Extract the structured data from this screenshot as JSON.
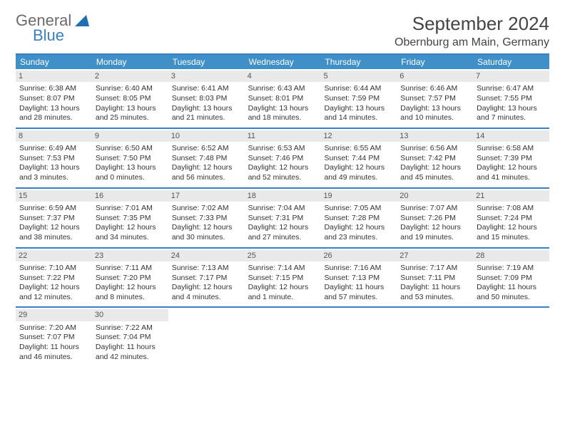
{
  "brand": {
    "general": "General",
    "blue": "Blue",
    "logo_color": "#1f6fb2"
  },
  "header": {
    "month_title": "September 2024",
    "location": "Obernburg am Main, Germany"
  },
  "colors": {
    "header_bar": "#3f8fc9",
    "rule": "#3a7fbf",
    "daynum_bg": "#e9e9e9",
    "text": "#333333"
  },
  "weekdays": [
    "Sunday",
    "Monday",
    "Tuesday",
    "Wednesday",
    "Thursday",
    "Friday",
    "Saturday"
  ],
  "weeks": [
    [
      {
        "n": "1",
        "sunrise": "Sunrise: 6:38 AM",
        "sunset": "Sunset: 8:07 PM",
        "day1": "Daylight: 13 hours",
        "day2": "and 28 minutes."
      },
      {
        "n": "2",
        "sunrise": "Sunrise: 6:40 AM",
        "sunset": "Sunset: 8:05 PM",
        "day1": "Daylight: 13 hours",
        "day2": "and 25 minutes."
      },
      {
        "n": "3",
        "sunrise": "Sunrise: 6:41 AM",
        "sunset": "Sunset: 8:03 PM",
        "day1": "Daylight: 13 hours",
        "day2": "and 21 minutes."
      },
      {
        "n": "4",
        "sunrise": "Sunrise: 6:43 AM",
        "sunset": "Sunset: 8:01 PM",
        "day1": "Daylight: 13 hours",
        "day2": "and 18 minutes."
      },
      {
        "n": "5",
        "sunrise": "Sunrise: 6:44 AM",
        "sunset": "Sunset: 7:59 PM",
        "day1": "Daylight: 13 hours",
        "day2": "and 14 minutes."
      },
      {
        "n": "6",
        "sunrise": "Sunrise: 6:46 AM",
        "sunset": "Sunset: 7:57 PM",
        "day1": "Daylight: 13 hours",
        "day2": "and 10 minutes."
      },
      {
        "n": "7",
        "sunrise": "Sunrise: 6:47 AM",
        "sunset": "Sunset: 7:55 PM",
        "day1": "Daylight: 13 hours",
        "day2": "and 7 minutes."
      }
    ],
    [
      {
        "n": "8",
        "sunrise": "Sunrise: 6:49 AM",
        "sunset": "Sunset: 7:53 PM",
        "day1": "Daylight: 13 hours",
        "day2": "and 3 minutes."
      },
      {
        "n": "9",
        "sunrise": "Sunrise: 6:50 AM",
        "sunset": "Sunset: 7:50 PM",
        "day1": "Daylight: 13 hours",
        "day2": "and 0 minutes."
      },
      {
        "n": "10",
        "sunrise": "Sunrise: 6:52 AM",
        "sunset": "Sunset: 7:48 PM",
        "day1": "Daylight: 12 hours",
        "day2": "and 56 minutes."
      },
      {
        "n": "11",
        "sunrise": "Sunrise: 6:53 AM",
        "sunset": "Sunset: 7:46 PM",
        "day1": "Daylight: 12 hours",
        "day2": "and 52 minutes."
      },
      {
        "n": "12",
        "sunrise": "Sunrise: 6:55 AM",
        "sunset": "Sunset: 7:44 PM",
        "day1": "Daylight: 12 hours",
        "day2": "and 49 minutes."
      },
      {
        "n": "13",
        "sunrise": "Sunrise: 6:56 AM",
        "sunset": "Sunset: 7:42 PM",
        "day1": "Daylight: 12 hours",
        "day2": "and 45 minutes."
      },
      {
        "n": "14",
        "sunrise": "Sunrise: 6:58 AM",
        "sunset": "Sunset: 7:39 PM",
        "day1": "Daylight: 12 hours",
        "day2": "and 41 minutes."
      }
    ],
    [
      {
        "n": "15",
        "sunrise": "Sunrise: 6:59 AM",
        "sunset": "Sunset: 7:37 PM",
        "day1": "Daylight: 12 hours",
        "day2": "and 38 minutes."
      },
      {
        "n": "16",
        "sunrise": "Sunrise: 7:01 AM",
        "sunset": "Sunset: 7:35 PM",
        "day1": "Daylight: 12 hours",
        "day2": "and 34 minutes."
      },
      {
        "n": "17",
        "sunrise": "Sunrise: 7:02 AM",
        "sunset": "Sunset: 7:33 PM",
        "day1": "Daylight: 12 hours",
        "day2": "and 30 minutes."
      },
      {
        "n": "18",
        "sunrise": "Sunrise: 7:04 AM",
        "sunset": "Sunset: 7:31 PM",
        "day1": "Daylight: 12 hours",
        "day2": "and 27 minutes."
      },
      {
        "n": "19",
        "sunrise": "Sunrise: 7:05 AM",
        "sunset": "Sunset: 7:28 PM",
        "day1": "Daylight: 12 hours",
        "day2": "and 23 minutes."
      },
      {
        "n": "20",
        "sunrise": "Sunrise: 7:07 AM",
        "sunset": "Sunset: 7:26 PM",
        "day1": "Daylight: 12 hours",
        "day2": "and 19 minutes."
      },
      {
        "n": "21",
        "sunrise": "Sunrise: 7:08 AM",
        "sunset": "Sunset: 7:24 PM",
        "day1": "Daylight: 12 hours",
        "day2": "and 15 minutes."
      }
    ],
    [
      {
        "n": "22",
        "sunrise": "Sunrise: 7:10 AM",
        "sunset": "Sunset: 7:22 PM",
        "day1": "Daylight: 12 hours",
        "day2": "and 12 minutes."
      },
      {
        "n": "23",
        "sunrise": "Sunrise: 7:11 AM",
        "sunset": "Sunset: 7:20 PM",
        "day1": "Daylight: 12 hours",
        "day2": "and 8 minutes."
      },
      {
        "n": "24",
        "sunrise": "Sunrise: 7:13 AM",
        "sunset": "Sunset: 7:17 PM",
        "day1": "Daylight: 12 hours",
        "day2": "and 4 minutes."
      },
      {
        "n": "25",
        "sunrise": "Sunrise: 7:14 AM",
        "sunset": "Sunset: 7:15 PM",
        "day1": "Daylight: 12 hours",
        "day2": "and 1 minute."
      },
      {
        "n": "26",
        "sunrise": "Sunrise: 7:16 AM",
        "sunset": "Sunset: 7:13 PM",
        "day1": "Daylight: 11 hours",
        "day2": "and 57 minutes."
      },
      {
        "n": "27",
        "sunrise": "Sunrise: 7:17 AM",
        "sunset": "Sunset: 7:11 PM",
        "day1": "Daylight: 11 hours",
        "day2": "and 53 minutes."
      },
      {
        "n": "28",
        "sunrise": "Sunrise: 7:19 AM",
        "sunset": "Sunset: 7:09 PM",
        "day1": "Daylight: 11 hours",
        "day2": "and 50 minutes."
      }
    ],
    [
      {
        "n": "29",
        "sunrise": "Sunrise: 7:20 AM",
        "sunset": "Sunset: 7:07 PM",
        "day1": "Daylight: 11 hours",
        "day2": "and 46 minutes."
      },
      {
        "n": "30",
        "sunrise": "Sunrise: 7:22 AM",
        "sunset": "Sunset: 7:04 PM",
        "day1": "Daylight: 11 hours",
        "day2": "and 42 minutes."
      },
      null,
      null,
      null,
      null,
      null
    ]
  ]
}
